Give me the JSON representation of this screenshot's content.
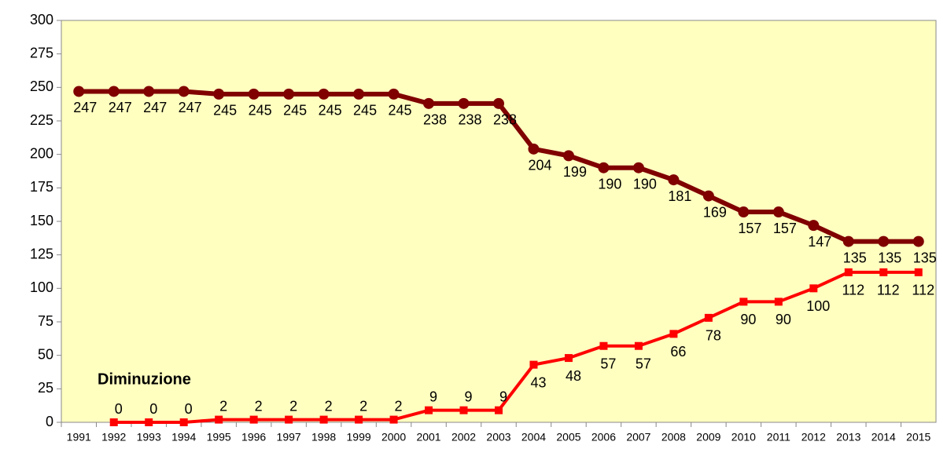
{
  "chart_data": {
    "type": "line",
    "categories": [
      "1991",
      "1992",
      "1993",
      "1994",
      "1995",
      "1996",
      "1997",
      "1998",
      "1999",
      "2000",
      "2001",
      "2002",
      "2003",
      "2004",
      "2005",
      "2006",
      "2007",
      "2008",
      "2009",
      "2010",
      "2011",
      "2012",
      "2013",
      "2014",
      "2015"
    ],
    "series": [
      {
        "color": "#800000",
        "marker": "circle",
        "values": [
          247,
          247,
          247,
          247,
          245,
          245,
          245,
          245,
          245,
          245,
          238,
          238,
          238,
          204,
          199,
          190,
          190,
          181,
          169,
          157,
          157,
          147,
          135,
          135,
          135
        ]
      },
      {
        "color": "#ff0000",
        "marker": "square",
        "values": [
          null,
          0,
          0,
          0,
          2,
          2,
          2,
          2,
          2,
          2,
          9,
          9,
          9,
          43,
          48,
          57,
          57,
          66,
          78,
          90,
          90,
          100,
          112,
          112,
          112
        ]
      }
    ],
    "annotation": "Diminuzione",
    "ylim": [
      0,
      300
    ],
    "yticks": [
      0,
      25,
      50,
      75,
      100,
      125,
      150,
      175,
      200,
      225,
      250,
      275,
      300
    ],
    "plot_background": "#ffffc0"
  }
}
